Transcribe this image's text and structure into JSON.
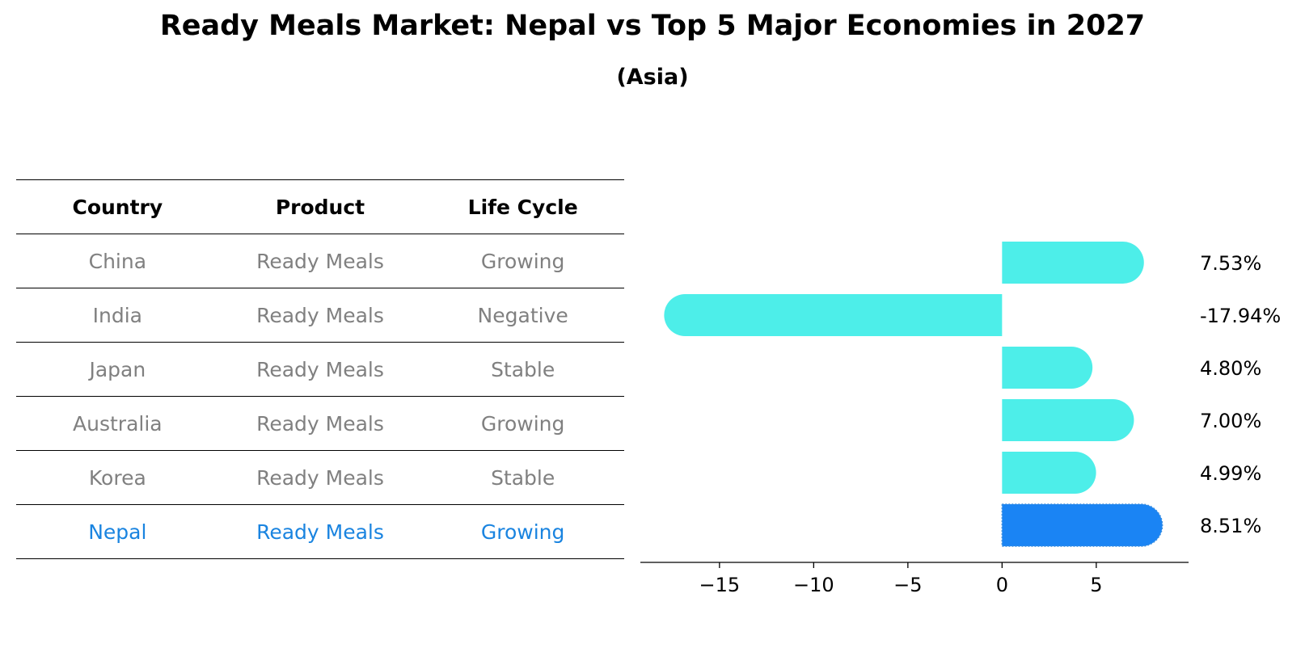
{
  "title": "Ready Meals Market: Nepal vs Top 5 Major Economies in 2027",
  "subtitle": "(Asia)",
  "table": {
    "headers": [
      "Country",
      "Product",
      "Life Cycle"
    ],
    "rows": [
      [
        "China",
        "Ready Meals",
        "Growing"
      ],
      [
        "India",
        "Ready Meals",
        "Negative"
      ],
      [
        "Japan",
        "Ready Meals",
        "Stable"
      ],
      [
        "Australia",
        "Ready Meals",
        "Growing"
      ],
      [
        "Korea",
        "Ready Meals",
        "Stable"
      ],
      [
        "Nepal",
        "Ready Meals",
        "Growing"
      ]
    ],
    "highlight_row": "Nepal"
  },
  "chart_data": {
    "type": "bar",
    "orientation": "horizontal",
    "categories": [
      "China",
      "India",
      "Japan",
      "Australia",
      "Korea",
      "Nepal"
    ],
    "values": [
      7.53,
      -17.94,
      4.8,
      7.0,
      4.99,
      8.51
    ],
    "value_labels": [
      "7.53%",
      "-17.94%",
      "4.80%",
      "7.00%",
      "4.99%",
      "8.51%"
    ],
    "highlight": "Nepal",
    "xlim": [
      -19.2,
      9.9
    ],
    "xticks": [
      -15,
      -10,
      -5,
      0,
      5
    ],
    "xtick_labels": [
      "−15",
      "−10",
      "−5",
      "0",
      "5"
    ],
    "grid": false,
    "colors": {
      "default": "#4deee9",
      "highlight": "#1a84f4",
      "highlight_text": "#1a84e0",
      "muted_text": "#808080"
    }
  }
}
